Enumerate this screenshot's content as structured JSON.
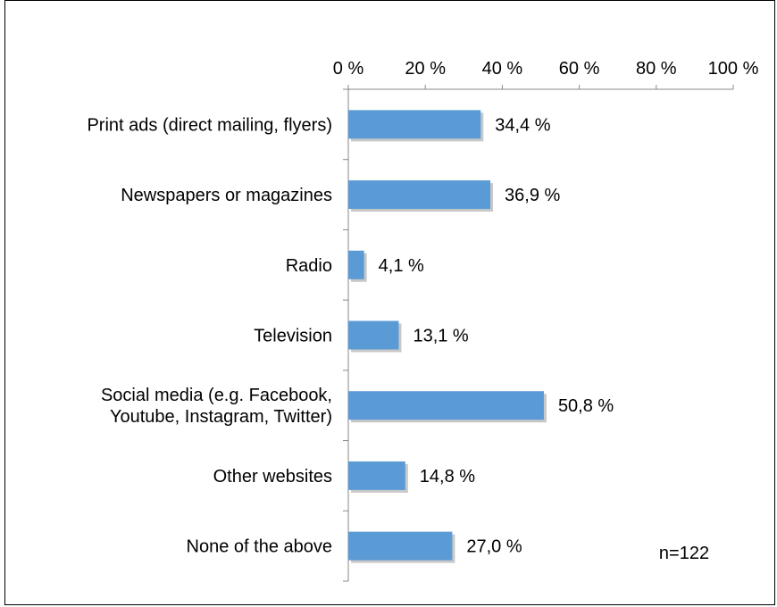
{
  "chart_data": {
    "type": "bar",
    "orientation": "horizontal",
    "categories": [
      [
        "Print ads (direct mailing, flyers)"
      ],
      [
        "Newspapers or magazines"
      ],
      [
        "Radio"
      ],
      [
        "Television"
      ],
      [
        "Social media (e.g. Facebook,",
        "Youtube, Instagram, Twitter)"
      ],
      [
        "Other websites"
      ],
      [
        "None of the above"
      ]
    ],
    "values": [
      34.4,
      36.9,
      4.1,
      13.1,
      50.8,
      14.8,
      27.0
    ],
    "data_labels": [
      "34,4 %",
      "36,9 %",
      "4,1 %",
      "13,1 %",
      "50,8 %",
      "14,8 %",
      "27,0 %"
    ],
    "xlim": [
      0,
      100
    ],
    "x_ticks": [
      0,
      20,
      40,
      60,
      80,
      100
    ],
    "x_tick_labels": [
      "0 %",
      "20 %",
      "40 %",
      "60 %",
      "80 %",
      "100 %"
    ],
    "x_axis_position": "top",
    "grid": false,
    "bar_color": "#5b9bd5",
    "note": "n=122"
  }
}
